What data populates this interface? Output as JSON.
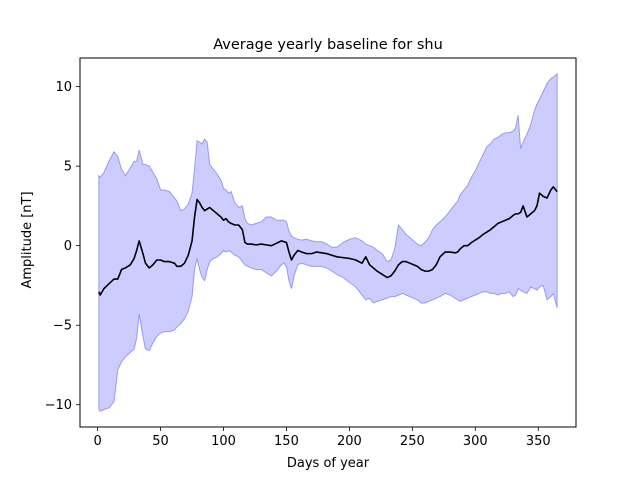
{
  "chart_data": {
    "type": "line",
    "title": "Average yearly baseline for shu",
    "xlabel": "Days of year",
    "ylabel": "Amplitude [nT]",
    "xlim": [
      -14,
      380
    ],
    "ylim": [
      -11.4,
      11.8
    ],
    "xticks": [
      0,
      50,
      100,
      150,
      200,
      250,
      300,
      350
    ],
    "yticks": [
      -10,
      -5,
      0,
      5,
      10
    ],
    "ytick_labels": [
      "−10",
      "−5",
      "0",
      "5",
      "10"
    ],
    "grid": false,
    "colors": {
      "line": "#000000",
      "band_fill": "#ccccff",
      "band_edge": "#9999ee"
    },
    "series": [
      {
        "kind": "line",
        "x": [
          1,
          2,
          5,
          9,
          13,
          16,
          19,
          22,
          26,
          29,
          31,
          33,
          36,
          38,
          41,
          44,
          47,
          50,
          53,
          57,
          61,
          63,
          66,
          69,
          72,
          75,
          77,
          79,
          81,
          83,
          85,
          87,
          89,
          92,
          95,
          98,
          100,
          102,
          104,
          106,
          109,
          112,
          115,
          117,
          119,
          122,
          126,
          130,
          134,
          138,
          142,
          146,
          148,
          150,
          152,
          154,
          156,
          159,
          162,
          166,
          170,
          174,
          178,
          182,
          186,
          190,
          195,
          200,
          205,
          210,
          213,
          216,
          219,
          222,
          226,
          230,
          233,
          236,
          239,
          242,
          245,
          248,
          251,
          254,
          257,
          260,
          263,
          266,
          269,
          272,
          276,
          280,
          284,
          286,
          288,
          291,
          294,
          297,
          300,
          303,
          306,
          309,
          312,
          315,
          318,
          321,
          324,
          327,
          330,
          332,
          334,
          336,
          338,
          341,
          344,
          347,
          349,
          351,
          354,
          357,
          360,
          362,
          365
        ],
        "y": [
          -2.9,
          -3.1,
          -2.7,
          -2.4,
          -2.1,
          -2.1,
          -1.5,
          -1.4,
          -1.2,
          -0.8,
          -0.3,
          0.3,
          -0.5,
          -1.1,
          -1.4,
          -1.2,
          -0.9,
          -0.9,
          -1.0,
          -1.0,
          -1.1,
          -1.3,
          -1.3,
          -1.1,
          -0.6,
          0.3,
          1.8,
          2.9,
          2.7,
          2.4,
          2.2,
          2.3,
          2.4,
          2.2,
          2.0,
          1.8,
          1.6,
          1.7,
          1.5,
          1.4,
          1.3,
          1.3,
          1.0,
          0.2,
          0.1,
          0.1,
          0.05,
          0.1,
          0.05,
          0.0,
          0.15,
          0.3,
          0.25,
          0.2,
          -0.4,
          -0.9,
          -0.6,
          -0.3,
          -0.4,
          -0.5,
          -0.5,
          -0.4,
          -0.45,
          -0.5,
          -0.6,
          -0.7,
          -0.75,
          -0.8,
          -0.9,
          -1.1,
          -0.7,
          -1.2,
          -1.4,
          -1.6,
          -1.8,
          -2.0,
          -1.9,
          -1.6,
          -1.2,
          -1.0,
          -1.0,
          -1.1,
          -1.2,
          -1.3,
          -1.5,
          -1.6,
          -1.6,
          -1.5,
          -1.2,
          -0.7,
          -0.4,
          -0.4,
          -0.45,
          -0.4,
          -0.2,
          0.0,
          0.0,
          0.2,
          0.35,
          0.5,
          0.7,
          0.85,
          1.0,
          1.2,
          1.4,
          1.5,
          1.6,
          1.7,
          1.9,
          2.0,
          2.0,
          2.1,
          2.5,
          1.8,
          2.0,
          2.2,
          2.5,
          3.3,
          3.1,
          3.0,
          3.5,
          3.7,
          3.4
        ]
      },
      {
        "kind": "band",
        "x": [
          1,
          2,
          5,
          9,
          13,
          16,
          19,
          22,
          26,
          29,
          31,
          33,
          36,
          38,
          41,
          44,
          47,
          50,
          53,
          57,
          61,
          63,
          66,
          69,
          72,
          75,
          77,
          79,
          81,
          83,
          85,
          87,
          89,
          92,
          95,
          98,
          100,
          102,
          104,
          106,
          109,
          112,
          115,
          117,
          119,
          122,
          126,
          130,
          134,
          138,
          142,
          146,
          148,
          150,
          152,
          154,
          156,
          159,
          162,
          166,
          170,
          174,
          178,
          182,
          186,
          190,
          195,
          200,
          205,
          210,
          213,
          216,
          219,
          222,
          226,
          230,
          233,
          236,
          239,
          242,
          245,
          248,
          251,
          254,
          257,
          260,
          263,
          266,
          269,
          272,
          276,
          280,
          284,
          286,
          288,
          291,
          294,
          297,
          300,
          303,
          306,
          309,
          312,
          315,
          318,
          321,
          324,
          327,
          330,
          332,
          334,
          336,
          338,
          341,
          344,
          347,
          349,
          351,
          354,
          357,
          360,
          362,
          365
        ],
        "upper": [
          4.4,
          4.3,
          4.6,
          5.3,
          5.9,
          5.6,
          4.8,
          4.4,
          4.9,
          5.3,
          5.3,
          6.0,
          5.1,
          5.1,
          5.0,
          4.6,
          4.2,
          3.5,
          3.5,
          3.4,
          3.0,
          2.8,
          2.2,
          2.3,
          2.6,
          3.3,
          4.8,
          6.6,
          6.5,
          6.4,
          6.7,
          6.5,
          5.1,
          4.8,
          4.5,
          4.1,
          3.6,
          3.5,
          3.3,
          3.4,
          2.7,
          2.4,
          2.5,
          1.7,
          1.4,
          1.3,
          1.4,
          1.5,
          1.8,
          1.8,
          1.6,
          1.6,
          1.6,
          1.5,
          0.9,
          0.6,
          0.5,
          0.4,
          0.35,
          0.4,
          0.3,
          0.25,
          0.25,
          0.1,
          -0.1,
          -0.1,
          0.2,
          0.4,
          0.5,
          0.3,
          0.1,
          0.0,
          -0.1,
          -0.3,
          -0.5,
          -1.0,
          -0.9,
          -0.2,
          1.3,
          1.0,
          0.7,
          0.5,
          0.3,
          0.1,
          0.0,
          0.2,
          0.5,
          1.0,
          1.3,
          1.5,
          1.8,
          2.2,
          2.6,
          2.8,
          3.2,
          3.5,
          3.8,
          4.3,
          4.7,
          5.2,
          5.7,
          6.2,
          6.4,
          6.7,
          6.8,
          7.0,
          7.1,
          7.1,
          7.2,
          7.4,
          8.2,
          6.1,
          6.5,
          7.0,
          7.6,
          8.5,
          8.9,
          9.2,
          9.7,
          10.2,
          10.5,
          10.6,
          10.8
        ],
        "lower": [
          -10.3,
          -10.4,
          -10.3,
          -10.2,
          -9.8,
          -7.8,
          -7.3,
          -7.0,
          -6.7,
          -6.5,
          -5.8,
          -4.3,
          -5.7,
          -6.5,
          -6.6,
          -6.1,
          -5.7,
          -5.5,
          -5.4,
          -5.4,
          -5.3,
          -5.1,
          -4.9,
          -4.6,
          -4.1,
          -3.2,
          -1.5,
          -0.8,
          -1.5,
          -2.0,
          -2.2,
          -1.5,
          -1.0,
          -0.8,
          -0.7,
          -0.5,
          -0.3,
          -0.4,
          -0.3,
          -0.4,
          -0.6,
          -0.7,
          -1.0,
          -1.2,
          -1.3,
          -1.4,
          -1.5,
          -1.5,
          -1.7,
          -1.9,
          -1.6,
          -1.2,
          -1.1,
          -1.3,
          -2.2,
          -2.7,
          -1.9,
          -1.2,
          -1.1,
          -1.2,
          -1.3,
          -1.3,
          -1.3,
          -1.4,
          -1.6,
          -1.8,
          -2.0,
          -2.3,
          -2.6,
          -3.1,
          -3.4,
          -3.3,
          -3.6,
          -3.5,
          -3.4,
          -3.3,
          -3.2,
          -3.2,
          -3.1,
          -3.0,
          -3.1,
          -3.2,
          -3.3,
          -3.4,
          -3.6,
          -3.6,
          -3.5,
          -3.4,
          -3.3,
          -3.2,
          -3.0,
          -3.1,
          -3.3,
          -3.4,
          -3.5,
          -3.4,
          -3.3,
          -3.2,
          -3.1,
          -3.0,
          -2.9,
          -2.9,
          -3.0,
          -3.0,
          -3.1,
          -3.0,
          -3.0,
          -2.9,
          -3.2,
          -3.1,
          -2.7,
          -2.8,
          -2.9,
          -3.0,
          -2.6,
          -2.7,
          -2.8,
          -2.6,
          -2.5,
          -3.4,
          -3.2,
          -3.0,
          -3.9
        ]
      }
    ]
  }
}
